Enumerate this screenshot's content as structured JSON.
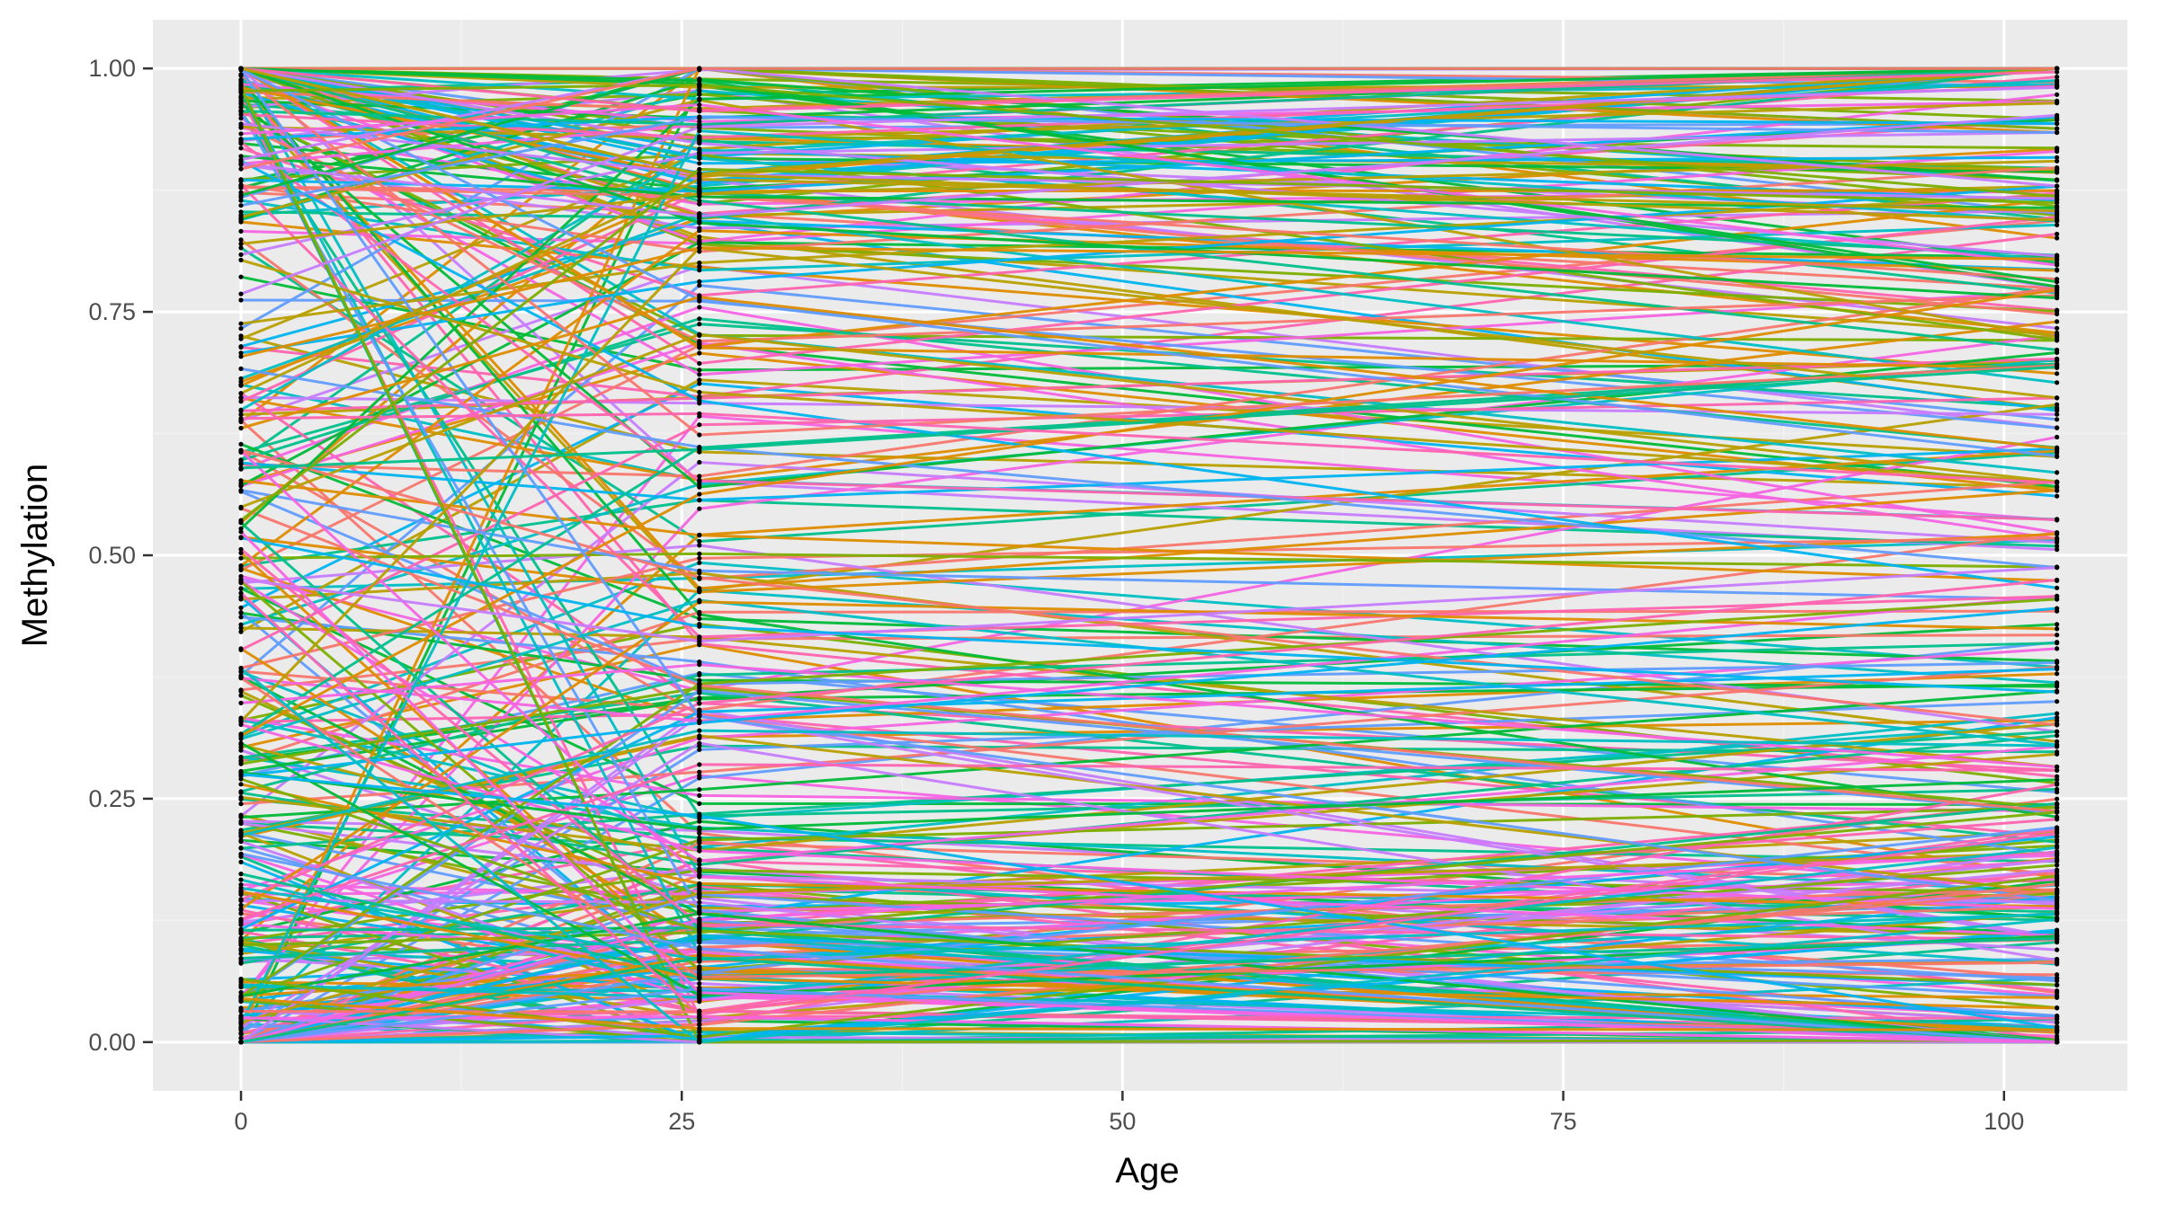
{
  "chart_data": {
    "type": "line",
    "title": "",
    "xlabel": "Age",
    "ylabel": "Methylation",
    "xlim": [
      -5,
      107
    ],
    "ylim": [
      -0.05,
      1.05
    ],
    "x": [
      0,
      26,
      103
    ],
    "x_ticks": [
      0,
      25,
      50,
      75,
      100
    ],
    "x_tick_labels": [
      "0",
      "25",
      "50",
      "75",
      "100"
    ],
    "y_ticks": [
      0,
      0.25,
      0.5,
      0.75,
      1
    ],
    "y_tick_labels": [
      "0.00",
      "0.25",
      "0.50",
      "0.75",
      "1.00"
    ],
    "grid": true,
    "legend": "none",
    "series_count": 400,
    "series_note": "Hundreds of individual CpG methylation trajectories across ages 0, 26 and 103; values are representative of the visible distribution (dense near 0 and 1, spread across 0.05-0.95).",
    "palette": [
      "#F8766D",
      "#DE8C00",
      "#B79F00",
      "#7CAE00",
      "#00BA38",
      "#00C08B",
      "#00BFC4",
      "#00B4F0",
      "#619CFF",
      "#C77CFF",
      "#F564E3",
      "#FF64B0"
    ],
    "colors": {
      "panel": "#EBEBEB",
      "grid_major": "#FFFFFF",
      "grid_minor": "#F2F2F2",
      "point": "#000000"
    }
  }
}
